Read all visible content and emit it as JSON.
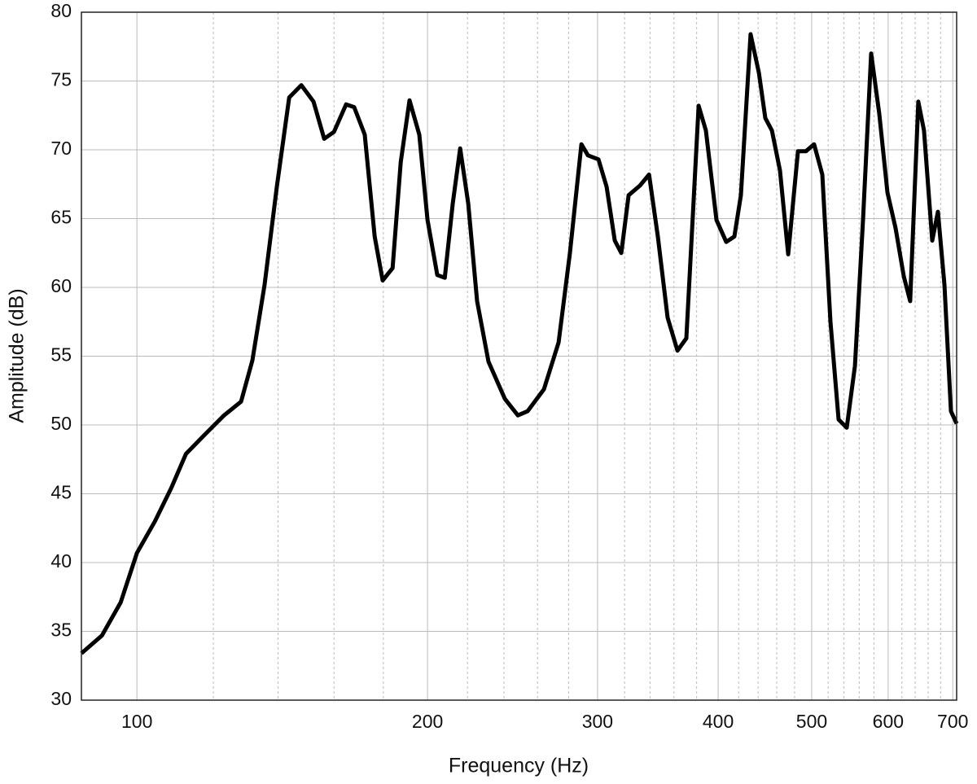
{
  "chart_data": {
    "type": "line",
    "xlabel": "Frequency (Hz)",
    "ylabel": "Amplitude (dB)",
    "xscale": "log",
    "grid": true,
    "color": "#000000",
    "xlim": [
      87.6,
      706.5
    ],
    "ylim": [
      30,
      80
    ],
    "xticks": [
      100,
      200,
      300,
      400,
      500,
      600,
      700
    ],
    "xminor": [
      120,
      140,
      160,
      180,
      220,
      240,
      260,
      280,
      320,
      340,
      360,
      380,
      420,
      440,
      460,
      480,
      520,
      540,
      560,
      580,
      620,
      640,
      660,
      680
    ],
    "yticks": [
      30,
      35,
      40,
      45,
      50,
      55,
      60,
      65,
      70,
      75,
      80
    ],
    "x": [
      87.6,
      92.0,
      96.2,
      100,
      104.4,
      108.5,
      112.4,
      117.2,
      123.1,
      128.2,
      131.7,
      135.6,
      139.6,
      143.8,
      148.0,
      152.4,
      156.3,
      160.0,
      164.7,
      167.9,
      172.2,
      176.3,
      179.7,
      184.0,
      187.6,
      191.6,
      196.1,
      200.0,
      204.7,
      208.4,
      212.4,
      216.2,
      220.4,
      225.1,
      231.3,
      240.5,
      248.1,
      253.9,
      264.0,
      273.4,
      280.9,
      288.7,
      293.2,
      300.7,
      306.6,
      312.6,
      317.5,
      323.1,
      332.0,
      339.2,
      346.4,
      354.6,
      363.0,
      370.8,
      381.8,
      388.5,
      398.4,
      407.8,
      415.8,
      422.3,
      432.2,
      440.8,
      447.6,
      454.7,
      463.6,
      472.7,
      483.9,
      493.3,
      502.9,
      512.8,
      522.9,
      533.1,
      543.6,
      554.3,
      565.1,
      576.2,
      587.5,
      599.0,
      610.7,
      622.8,
      632.4,
      644.8,
      653.6,
      666.5,
      675.6,
      686.2,
      697.0,
      706.5
    ],
    "values": [
      33.4,
      34.7,
      37.1,
      40.7,
      43.0,
      45.4,
      47.9,
      49.2,
      50.7,
      51.7,
      54.7,
      60.2,
      67.3,
      73.8,
      74.7,
      73.5,
      70.8,
      71.3,
      73.3,
      73.1,
      71.1,
      63.7,
      60.5,
      61.4,
      69.1,
      73.6,
      71.1,
      64.9,
      60.9,
      60.7,
      66.1,
      70.1,
      66.1,
      59.0,
      54.6,
      51.9,
      50.7,
      51.0,
      52.6,
      56.0,
      62.5,
      70.4,
      69.6,
      69.3,
      67.3,
      63.4,
      62.5,
      66.7,
      67.4,
      68.2,
      63.7,
      57.8,
      55.4,
      56.3,
      73.2,
      71.4,
      64.9,
      63.3,
      63.7,
      66.7,
      78.4,
      75.6,
      72.3,
      71.4,
      68.5,
      62.4,
      69.9,
      69.9,
      70.4,
      68.2,
      57.5,
      50.4,
      49.8,
      54.3,
      64.9,
      77.0,
      72.6,
      66.9,
      64.3,
      60.8,
      59.0,
      73.5,
      71.4,
      63.4,
      65.5,
      60.2,
      51.0,
      50.1
    ]
  }
}
